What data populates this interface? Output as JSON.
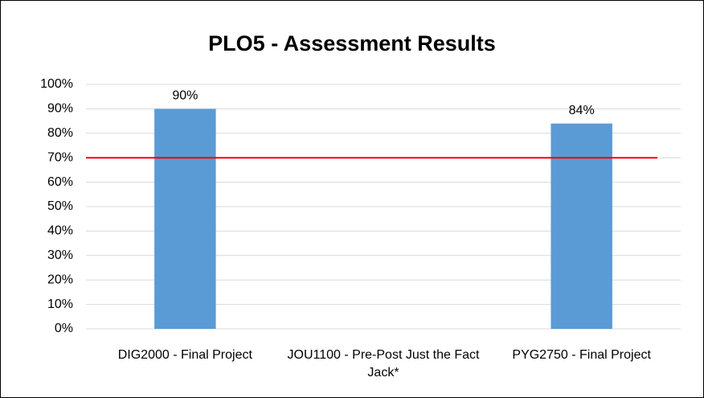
{
  "chart_data": {
    "type": "bar",
    "title": "PLO5 - Assessment Results",
    "categories": [
      "DIG2000 - Final Project",
      "JOU1100 - Pre-Post Just the Fact Jack*",
      "PYG2750 - Final Project"
    ],
    "values": [
      90,
      null,
      84
    ],
    "value_labels": [
      "90%",
      null,
      "84%"
    ],
    "color": "#5b9bd5",
    "reference_line": {
      "value": 70,
      "color": "#ff0000"
    },
    "ylim": [
      0,
      100
    ],
    "yticks": [
      {
        "value": 0,
        "label": "0%"
      },
      {
        "value": 10,
        "label": "10%"
      },
      {
        "value": 20,
        "label": "20%"
      },
      {
        "value": 30,
        "label": "30%"
      },
      {
        "value": 40,
        "label": "40%"
      },
      {
        "value": 50,
        "label": "50%"
      },
      {
        "value": 60,
        "label": "60%"
      },
      {
        "value": 70,
        "label": "70%"
      },
      {
        "value": 80,
        "label": "80%"
      },
      {
        "value": 90,
        "label": "90%"
      },
      {
        "value": 100,
        "label": "100%"
      }
    ],
    "grid": true
  }
}
